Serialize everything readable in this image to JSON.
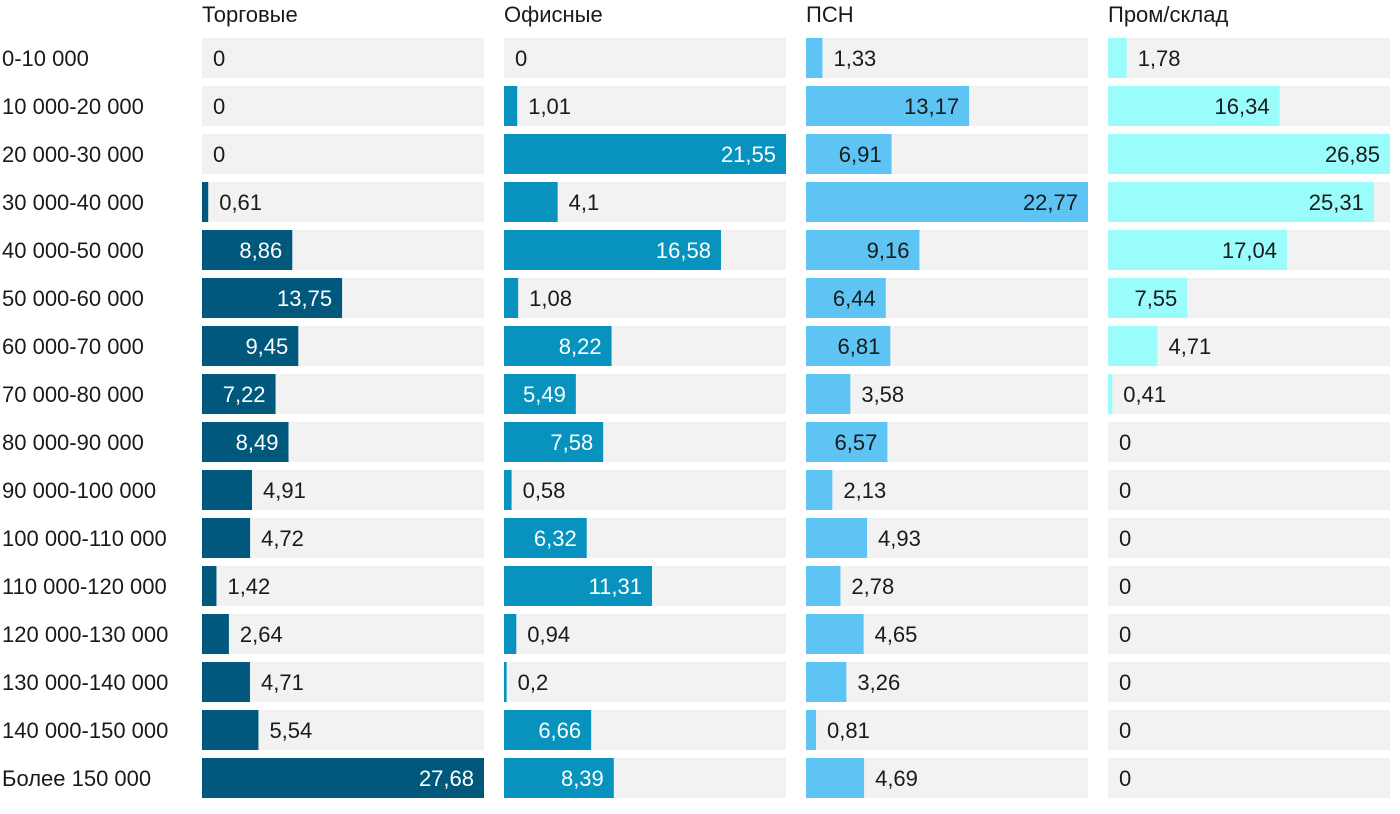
{
  "chart_data": {
    "type": "bar",
    "orientation": "horizontal",
    "layout": "small-multiples",
    "categories": [
      "0-10 000",
      "10 000-20 000",
      "20 000-30 000",
      "30 000-40 000",
      "40 000-50 000",
      "50 000-60 000",
      "60 000-70 000",
      "70 000-80 000",
      "80 000-90 000",
      "90 000-100 000",
      "100 000-110 000",
      "110 000-120 000",
      "120 000-130 000",
      "130 000-140 000",
      "140 000-150 000",
      "Более 150 000"
    ],
    "series": [
      {
        "name": "Торговые",
        "color": "#00587c",
        "max": 27.68,
        "values": [
          0,
          0,
          0,
          0.61,
          8.86,
          13.75,
          9.45,
          7.22,
          8.49,
          4.91,
          4.72,
          1.42,
          2.64,
          4.71,
          5.54,
          27.68
        ],
        "labels": [
          "0",
          "0",
          "0",
          "0,61",
          "8,86",
          "13,75",
          "9,45",
          "7,22",
          "8,49",
          "4,91",
          "4,72",
          "1,42",
          "2,64",
          "4,71",
          "5,54",
          "27,68"
        ]
      },
      {
        "name": "Офисные",
        "color": "#0793be",
        "max": 21.55,
        "values": [
          0,
          1.01,
          21.55,
          4.1,
          16.58,
          1.08,
          8.22,
          5.49,
          7.58,
          0.58,
          6.32,
          11.31,
          0.94,
          0.2,
          6.66,
          8.39
        ],
        "labels": [
          "0",
          "1,01",
          "21,55",
          "4,1",
          "16,58",
          "1,08",
          "8,22",
          "5,49",
          "7,58",
          "0,58",
          "6,32",
          "11,31",
          "0,94",
          "0,2",
          "6,66",
          "8,39"
        ]
      },
      {
        "name": "ПСН",
        "color": "#5ec4f4",
        "max": 22.77,
        "values": [
          1.33,
          13.17,
          6.91,
          22.77,
          9.16,
          6.44,
          6.81,
          3.58,
          6.57,
          2.13,
          4.93,
          2.78,
          4.65,
          3.26,
          0.81,
          4.69
        ],
        "labels": [
          "1,33",
          "13,17",
          "6,91",
          "22,77",
          "9,16",
          "6,44",
          "6,81",
          "3,58",
          "6,57",
          "2,13",
          "4,93",
          "2,78",
          "4,65",
          "3,26",
          "0,81",
          "4,69"
        ]
      },
      {
        "name": "Пром/склад",
        "color": "#9afcfb",
        "max": 26.85,
        "values": [
          1.78,
          16.34,
          26.85,
          25.31,
          17.04,
          7.55,
          4.71,
          0.41,
          0,
          0,
          0,
          0,
          0,
          0,
          0,
          0
        ],
        "labels": [
          "1,78",
          "16,34",
          "26,85",
          "25,31",
          "17,04",
          "7,55",
          "4,71",
          "0,41",
          "0",
          "0",
          "0",
          "0",
          "0",
          "0",
          "0",
          "0"
        ]
      }
    ],
    "background_color": "#f2f2f2",
    "legend": "none",
    "grid": false
  }
}
